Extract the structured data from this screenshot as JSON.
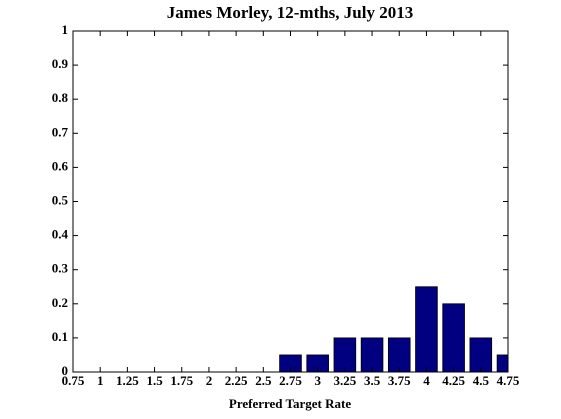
{
  "chart_data": {
    "type": "bar",
    "title": "James Morley, 12-mths, July 2013",
    "xlabel": "Preferred Target Rate",
    "x": [
      0.75,
      1,
      1.25,
      1.5,
      1.75,
      2,
      2.25,
      2.5,
      2.75,
      3,
      3.25,
      3.5,
      3.75,
      4,
      4.25,
      4.5,
      4.75
    ],
    "values": [
      0,
      0,
      0,
      0,
      0,
      0,
      0,
      0,
      0.05,
      0.05,
      0.1,
      0.1,
      0.1,
      0.25,
      0.2,
      0.1,
      0.05
    ],
    "color": "#000080",
    "xlim": [
      0.75,
      4.75
    ],
    "xticks": [
      0.75,
      1,
      1.25,
      1.5,
      1.75,
      2,
      2.25,
      2.5,
      2.75,
      3,
      3.25,
      3.5,
      3.75,
      4,
      4.25,
      4.5,
      4.75
    ],
    "ylim": [
      0,
      1
    ],
    "yticks": [
      0,
      0.1,
      0.2,
      0.3,
      0.4,
      0.5,
      0.6,
      0.7,
      0.8,
      0.9,
      1
    ]
  }
}
